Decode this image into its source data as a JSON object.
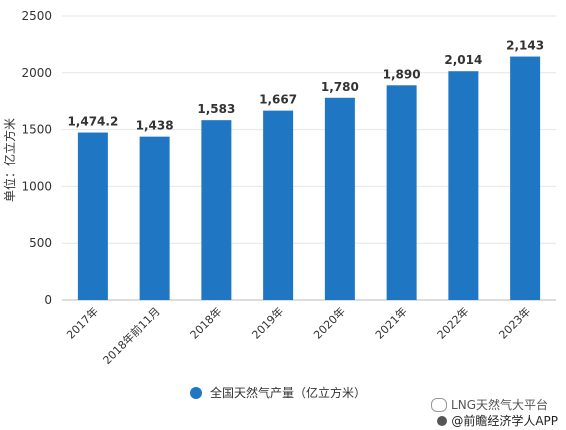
{
  "chart_data": {
    "type": "bar",
    "categories": [
      "2017年",
      "2018年前11月",
      "2018年",
      "2019年",
      "2020年",
      "2021年",
      "2022年",
      "2023年"
    ],
    "series": [
      {
        "name": "全国天然气产量（亿立方米）",
        "values": [
          1474.2,
          1438,
          1583,
          1667,
          1780,
          1890,
          2014,
          2143
        ]
      }
    ],
    "data_labels": [
      "1,474.2",
      "1,438",
      "1,583",
      "1,667",
      "1,780",
      "1,890",
      "2,014",
      "2,143"
    ],
    "ylabel": "单位：亿立方米",
    "ylim": [
      0,
      2500
    ],
    "yticks": [
      0,
      500,
      1000,
      1500,
      2000,
      2500
    ],
    "grid": true,
    "legend_position": "bottom",
    "bar_color": "#1f77c4"
  },
  "legend": {
    "label": "全国天然气产量（亿立方米）"
  },
  "watermark": {
    "brand": "LNG天然气大平台",
    "app": "@前瞻经济学人APP"
  }
}
